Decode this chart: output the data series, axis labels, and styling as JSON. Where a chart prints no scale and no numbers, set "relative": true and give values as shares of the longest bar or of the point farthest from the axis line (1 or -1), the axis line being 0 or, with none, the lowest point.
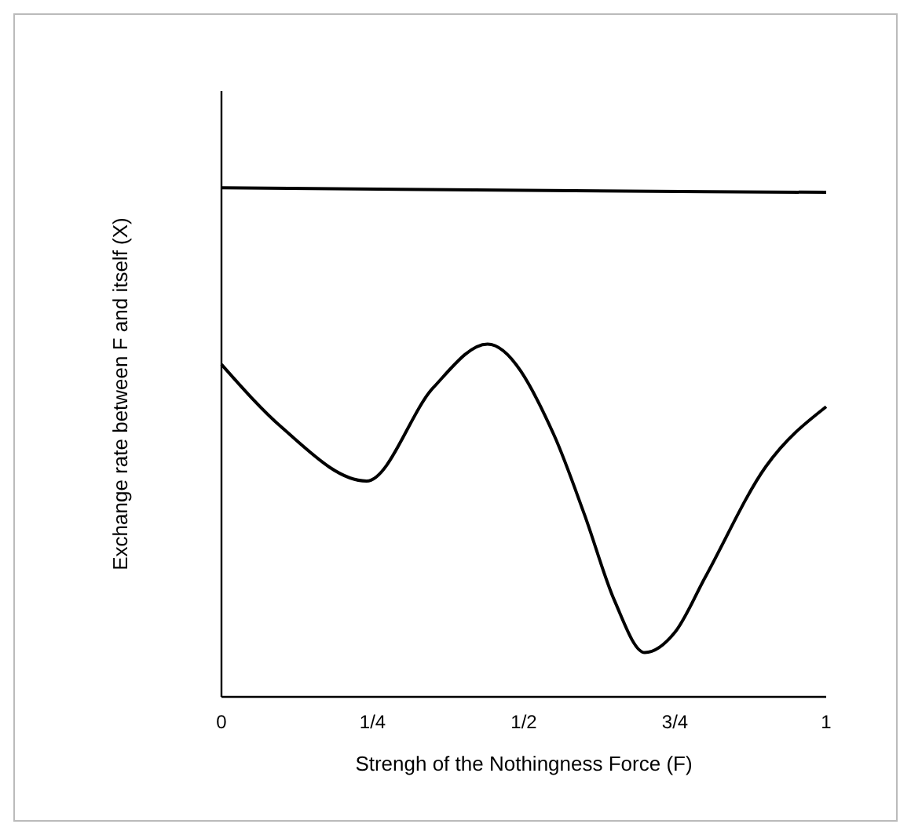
{
  "chart_data": {
    "type": "line",
    "relative": true,
    "xlabel": "Strengh of the Nothingness Force (F)",
    "ylabel": "Exchange rate between F and itself (X)",
    "xlim": [
      0,
      1
    ],
    "xticks": [
      0,
      {
        "value": 0.25,
        "label": "1/4"
      },
      {
        "value": 0.5,
        "label": "1/2"
      },
      {
        "value": 0.75,
        "label": "3/4"
      },
      1
    ],
    "grid": false,
    "marker": "none",
    "line_style": "solid",
    "series": [
      {
        "color": "#000000",
        "x": [
          0,
          0.5,
          1
        ],
        "values": [
          1,
          0.995,
          0.991
        ]
      },
      {
        "color": "#000000",
        "x": [
          0,
          0.1,
          0.24,
          0.35,
          0.44,
          0.55,
          0.6,
          0.65,
          0.7,
          0.75,
          0.8,
          0.9,
          1
        ],
        "values": [
          0.653,
          0.529,
          0.424,
          0.607,
          0.693,
          0.514,
          0.359,
          0.189,
          0.087,
          0.127,
          0.235,
          0.452,
          0.57
        ]
      }
    ]
  }
}
